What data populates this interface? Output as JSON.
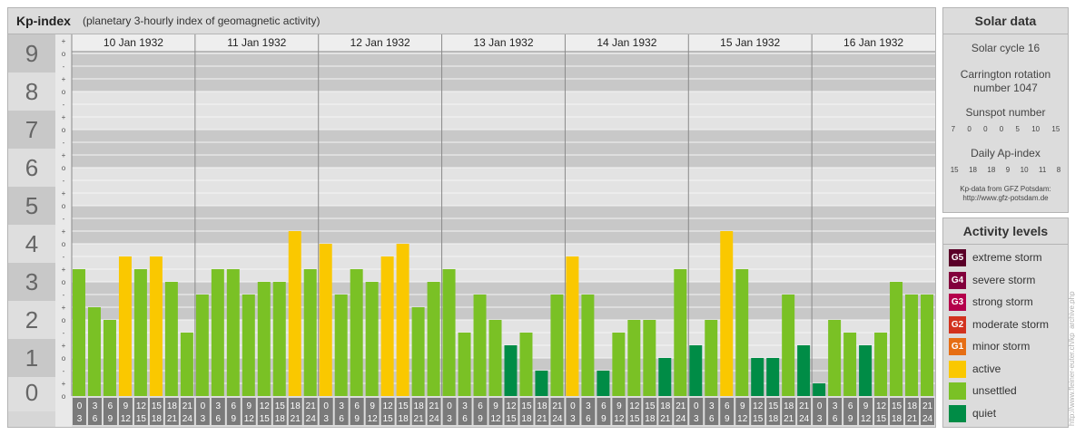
{
  "header": {
    "title": "Kp-index",
    "subtitle": "(planetary 3-hourly index of geomagnetic activity)"
  },
  "chart_data": {
    "type": "bar",
    "title": "Kp-index",
    "subtitle": "(planetary 3-hourly index of geomagnetic activity)",
    "ylim": [
      0,
      9
    ],
    "y_ticks": [
      "0",
      "1",
      "2",
      "3",
      "4",
      "5",
      "6",
      "7",
      "8",
      "9"
    ],
    "y_subticks": [
      "-",
      "o",
      "+"
    ],
    "days": [
      "10 Jan 1932",
      "11 Jan 1932",
      "12 Jan 1932",
      "13 Jan 1932",
      "14 Jan 1932",
      "15 Jan 1932",
      "16 Jan 1932"
    ],
    "interval_start": [
      "0",
      "3",
      "6",
      "9",
      "12",
      "15",
      "18",
      "21"
    ],
    "interval_end": [
      "3",
      "6",
      "9",
      "12",
      "15",
      "18",
      "21",
      "24"
    ],
    "values": [
      [
        3.333,
        2.333,
        2.0,
        3.667,
        3.333,
        3.667,
        3.0,
        1.667
      ],
      [
        2.667,
        3.333,
        3.333,
        2.667,
        3.0,
        3.0,
        4.333,
        3.333
      ],
      [
        4.0,
        2.667,
        3.333,
        3.0,
        3.667,
        4.0,
        2.333,
        3.0
      ],
      [
        3.333,
        1.667,
        2.667,
        2.0,
        1.333,
        1.667,
        0.667,
        2.667
      ],
      [
        3.667,
        2.667,
        0.667,
        1.667,
        2.0,
        2.0,
        1.0,
        3.333
      ],
      [
        1.333,
        2.0,
        4.333,
        3.333,
        1.0,
        1.0,
        2.667,
        1.333
      ],
      [
        0.333,
        2.0,
        1.667,
        1.333,
        1.667,
        3.0,
        2.667,
        2.667
      ]
    ],
    "colors": {
      "quiet": "#008c46",
      "unsettled": "#7ac125",
      "active": "#fac800"
    },
    "thresholds": {
      "quiet_below": 1.5,
      "active_from": 3.5
    },
    "grid": true
  },
  "solar_data": {
    "title": "Solar data",
    "cycle": "Solar cycle 16",
    "carrington_label": "Carrington rotation",
    "carrington_number": "number 1047",
    "sunspot_label": "Sunspot number",
    "sunspot_values": [
      "7",
      "0",
      "0",
      "0",
      "5",
      "10",
      "15"
    ],
    "ap_label": "Daily Ap-index",
    "ap_values": [
      "15",
      "18",
      "18",
      "9",
      "10",
      "11",
      "8"
    ],
    "source_line1": "Kp-data from GFZ Potsdam:",
    "source_line2": "http://www.gfz-potsdam.de"
  },
  "activity_levels": {
    "title": "Activity levels",
    "items": [
      {
        "code": "G5",
        "label": "extreme storm",
        "color": "#5a0028"
      },
      {
        "code": "G4",
        "label": "severe storm",
        "color": "#82003c"
      },
      {
        "code": "G3",
        "label": "strong storm",
        "color": "#b4004b"
      },
      {
        "code": "G2",
        "label": "moderate storm",
        "color": "#d2321e"
      },
      {
        "code": "G1",
        "label": "minor storm",
        "color": "#e66e14"
      },
      {
        "code": "",
        "label": "active",
        "color": "#fac800"
      },
      {
        "code": "",
        "label": "unsettled",
        "color": "#7ac125"
      },
      {
        "code": "",
        "label": "quiet",
        "color": "#008c46"
      }
    ]
  },
  "credit": "http://www.fleiner-euter.ch/kp_archive.php"
}
